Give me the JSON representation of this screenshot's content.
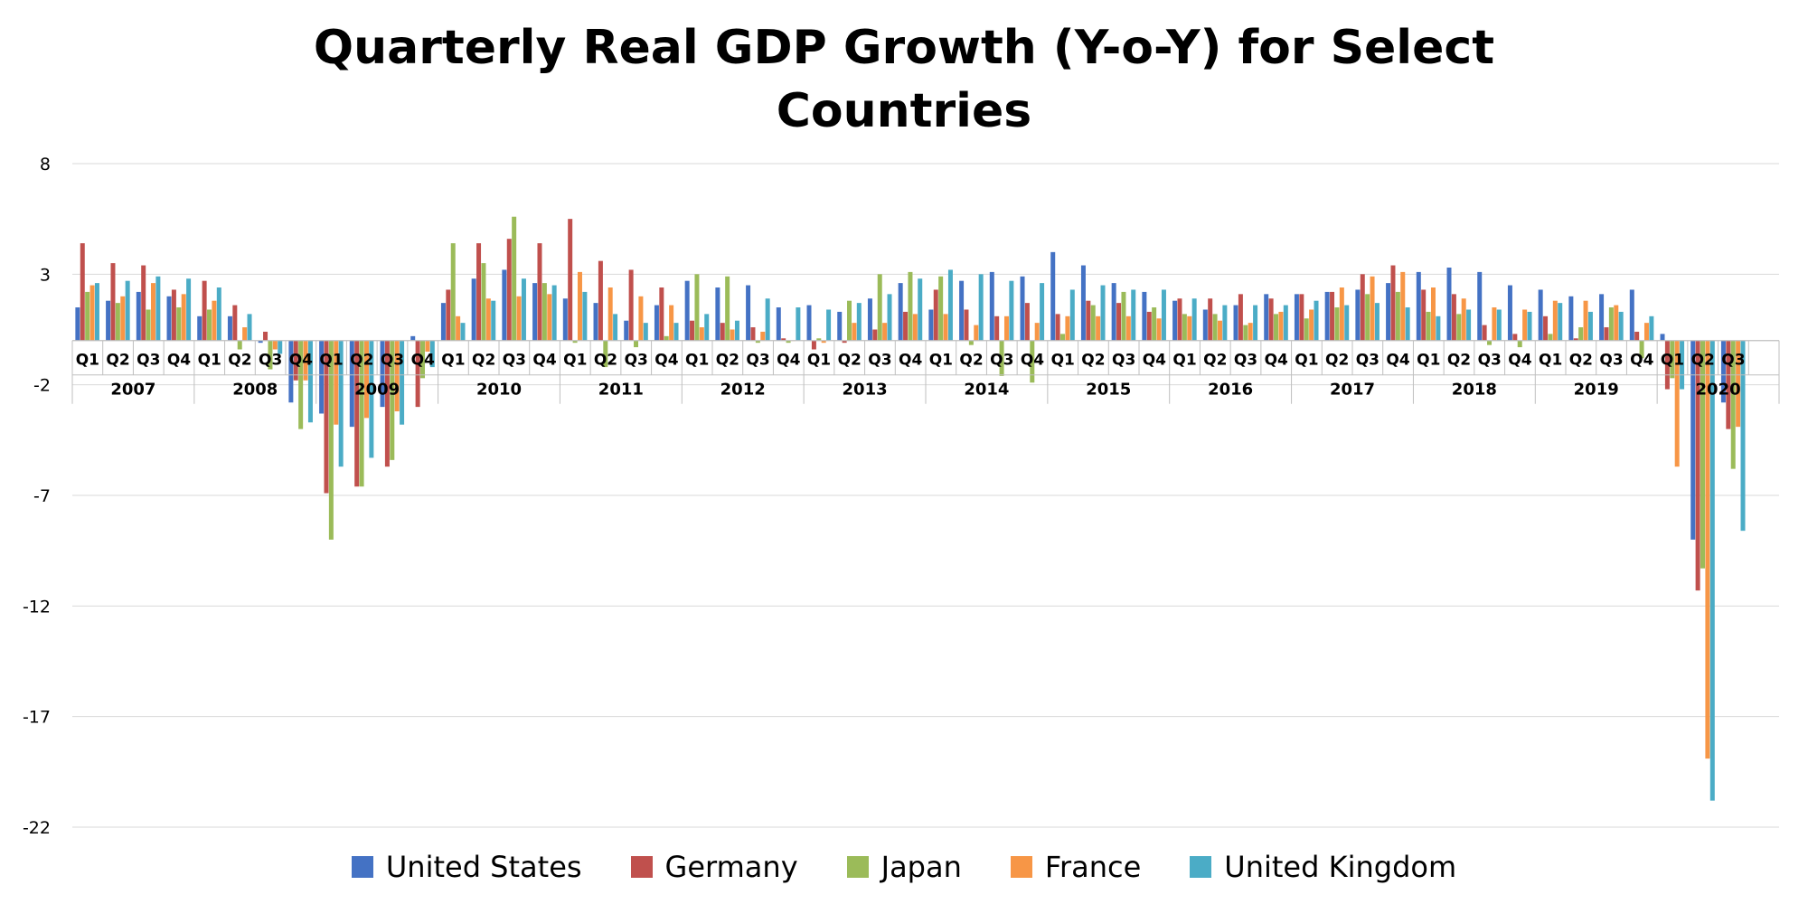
{
  "chart_data": {
    "type": "bar",
    "title": "Quarterly Real GDP Growth (Y-o-Y) for Select Countries",
    "title_lines": [
      "Quarterly Real GDP Growth (Y-o-Y) for Select",
      "Countries"
    ],
    "xlabel": "",
    "ylabel": "",
    "ylim": [
      -22,
      8
    ],
    "yticks": [
      8,
      3,
      -2,
      -7,
      -12,
      -17,
      -22
    ],
    "grid": true,
    "legend_position": "bottom",
    "years": [
      "2007",
      "2008",
      "2009",
      "2010",
      "2011",
      "2012",
      "2013",
      "2014",
      "2015",
      "2016",
      "2017",
      "2018",
      "2019",
      "2020"
    ],
    "quarter_labels": [
      "Q1",
      "Q2",
      "Q3",
      "Q4"
    ],
    "categories": [
      "2007 Q1",
      "2007 Q2",
      "2007 Q3",
      "2007 Q4",
      "2008 Q1",
      "2008 Q2",
      "2008 Q3",
      "2008 Q4",
      "2009 Q1",
      "2009 Q2",
      "2009 Q3",
      "2009 Q4",
      "2010 Q1",
      "2010 Q2",
      "2010 Q3",
      "2010 Q4",
      "2011 Q1",
      "2011 Q2",
      "2011 Q3",
      "2011 Q4",
      "2012 Q1",
      "2012 Q2",
      "2012 Q3",
      "2012 Q4",
      "2013 Q1",
      "2013 Q2",
      "2013 Q3",
      "2013 Q4",
      "2014 Q1",
      "2014 Q2",
      "2014 Q3",
      "2014 Q4",
      "2015 Q1",
      "2015 Q2",
      "2015 Q3",
      "2015 Q4",
      "2016 Q1",
      "2016 Q2",
      "2016 Q3",
      "2016 Q4",
      "2017 Q1",
      "2017 Q2",
      "2017 Q3",
      "2017 Q4",
      "2018 Q1",
      "2018 Q2",
      "2018 Q3",
      "2018 Q4",
      "2019 Q1",
      "2019 Q2",
      "2019 Q3",
      "2019 Q4",
      "2020 Q1",
      "2020 Q2",
      "2020 Q3"
    ],
    "series": [
      {
        "name": "United States",
        "color": "#4472C4",
        "values": [
          1.5,
          1.8,
          2.2,
          2.0,
          1.1,
          1.1,
          -0.1,
          -2.8,
          -3.3,
          -3.9,
          -3.0,
          0.2,
          1.7,
          2.8,
          3.2,
          2.6,
          1.9,
          1.7,
          0.9,
          1.6,
          2.7,
          2.4,
          2.5,
          1.5,
          1.6,
          1.3,
          1.9,
          2.6,
          1.4,
          2.7,
          3.1,
          2.9,
          4.0,
          3.4,
          2.6,
          2.2,
          1.8,
          1.4,
          1.6,
          2.1,
          2.1,
          2.2,
          2.3,
          2.6,
          3.1,
          3.3,
          3.1,
          2.5,
          2.3,
          2.0,
          2.1,
          2.3,
          0.3,
          -9.0,
          -2.8
        ]
      },
      {
        "name": "Germany",
        "color": "#C0504D",
        "values": [
          4.4,
          3.5,
          3.4,
          2.3,
          2.7,
          1.6,
          0.4,
          -1.8,
          -6.9,
          -6.6,
          -5.7,
          -3.0,
          2.3,
          4.4,
          4.6,
          4.4,
          5.5,
          3.6,
          3.2,
          2.4,
          0.9,
          0.8,
          0.6,
          0.1,
          -0.4,
          -0.1,
          0.5,
          1.3,
          2.3,
          1.4,
          1.1,
          1.7,
          1.2,
          1.8,
          1.7,
          1.3,
          1.9,
          1.9,
          2.1,
          1.9,
          2.1,
          2.2,
          3.0,
          3.4,
          2.3,
          2.1,
          0.7,
          0.3,
          1.1,
          0.1,
          0.6,
          0.4,
          -2.2,
          -11.3,
          -4.0
        ]
      },
      {
        "name": "Japan",
        "color": "#9BBB59",
        "values": [
          2.2,
          1.7,
          1.4,
          1.5,
          1.4,
          -0.4,
          -1.3,
          -4.0,
          -9.0,
          -6.6,
          -5.4,
          -1.7,
          4.4,
          3.5,
          5.6,
          2.6,
          -0.1,
          -1.2,
          -0.3,
          0.2,
          3.0,
          2.9,
          -0.1,
          -0.1,
          0.1,
          1.8,
          3.0,
          3.1,
          2.9,
          -0.2,
          -1.6,
          -1.9,
          0.3,
          1.6,
          2.2,
          1.5,
          1.2,
          1.2,
          0.7,
          1.2,
          1.0,
          1.5,
          2.1,
          2.2,
          1.3,
          1.2,
          -0.2,
          -0.3,
          0.3,
          0.6,
          1.5,
          -0.8,
          -1.7,
          -10.3,
          -5.8
        ]
      },
      {
        "name": "France",
        "color": "#F79646",
        "values": [
          2.5,
          2.0,
          2.6,
          2.1,
          1.8,
          0.6,
          -0.4,
          -1.8,
          -3.8,
          -3.5,
          -3.2,
          -0.5,
          1.1,
          1.9,
          2.0,
          2.1,
          3.1,
          2.4,
          2.0,
          1.6,
          0.6,
          0.5,
          0.4,
          0.0,
          -0.1,
          0.8,
          0.8,
          1.2,
          1.2,
          0.7,
          1.1,
          0.8,
          1.1,
          1.1,
          1.1,
          1.0,
          1.1,
          0.9,
          0.8,
          1.3,
          1.4,
          2.4,
          2.9,
          3.1,
          2.4,
          1.9,
          1.5,
          1.4,
          1.8,
          1.8,
          1.6,
          0.8,
          -5.7,
          -18.9,
          -3.9
        ]
      },
      {
        "name": "United Kingdom",
        "color": "#4BACC6",
        "values": [
          2.6,
          2.7,
          2.9,
          2.8,
          2.4,
          1.2,
          -0.6,
          -3.7,
          -5.7,
          -5.3,
          -3.8,
          -1.2,
          0.8,
          1.8,
          2.8,
          2.5,
          2.2,
          1.2,
          0.8,
          0.8,
          1.2,
          0.9,
          1.9,
          1.5,
          1.4,
          1.7,
          2.1,
          2.8,
          3.2,
          3.0,
          2.7,
          2.6,
          2.3,
          2.5,
          2.3,
          2.3,
          1.9,
          1.6,
          1.6,
          1.6,
          1.8,
          1.6,
          1.7,
          1.5,
          1.1,
          1.4,
          1.4,
          1.3,
          1.7,
          1.3,
          1.3,
          1.1,
          -2.2,
          -20.8,
          -8.6
        ]
      }
    ]
  }
}
